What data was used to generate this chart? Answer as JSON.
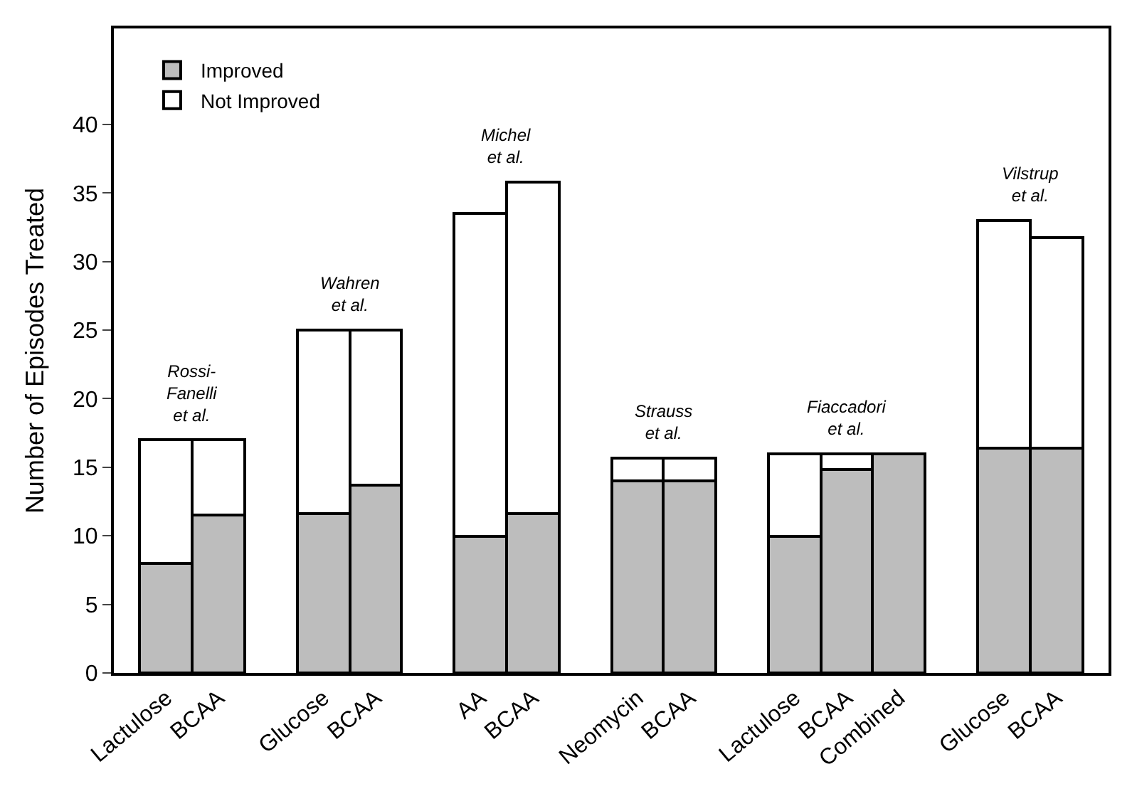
{
  "chart_data": {
    "type": "bar",
    "stacked": true,
    "ylabel": "Number of Episodes Treated",
    "categories": [
      "Lactulose",
      "BCAA",
      null,
      "Glucose",
      "BCAA",
      null,
      "AA",
      "BCAA",
      null,
      "Neomycin",
      "BCAA",
      null,
      "Lactulose",
      "BCAA",
      "Combined",
      null,
      "Glucose",
      "BCAA"
    ],
    "series": [
      {
        "name": "Improved",
        "color": "#bdbdbd",
        "values": [
          8,
          11.5,
          null,
          11.6,
          13.7,
          null,
          10,
          11.6,
          null,
          14,
          14,
          null,
          10,
          14.8,
          16,
          null,
          16.4,
          16.4
        ]
      },
      {
        "name": "Not Improved",
        "color": "#ffffff",
        "values": [
          9,
          5.5,
          null,
          13.4,
          11.3,
          null,
          23.5,
          24.2,
          null,
          1.7,
          1.7,
          null,
          6,
          1.2,
          null,
          null,
          16.6,
          15.3
        ]
      }
    ],
    "ylim": [
      0,
      47
    ],
    "yticks": [
      0,
      5,
      10,
      15,
      20,
      25,
      30,
      35,
      40
    ],
    "legend": "top left",
    "annotations": [
      "Rossi-\nFanelli\net al.",
      "Wahren\net al.",
      "Michel\net al.",
      "Strauss\net al.",
      "Fiaccadori\net al.",
      "Vilstrup\net al."
    ]
  }
}
